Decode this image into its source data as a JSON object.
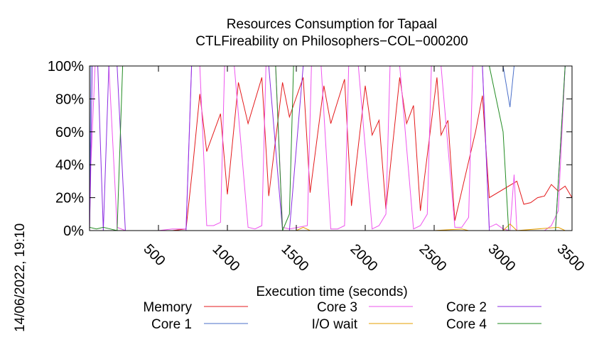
{
  "chart_data": {
    "type": "line",
    "title": "Resources Consumption for Tapaal",
    "subtitle": "CTLFireability on Philosophers−COL−000200",
    "xlabel": "Execution time (seconds)",
    "ylabel": "",
    "side_label": "14/06/2022, 19:10",
    "xlim": [
      0,
      3500
    ],
    "ylim": [
      0,
      100
    ],
    "x_ticks": [
      500,
      1000,
      1500,
      2000,
      2500,
      3000,
      3500
    ],
    "y_ticks": [
      {
        "value": 0,
        "label": "0%"
      },
      {
        "value": 20,
        "label": "20%"
      },
      {
        "value": 40,
        "label": "40%"
      },
      {
        "value": 60,
        "label": "60%"
      },
      {
        "value": 80,
        "label": "80%"
      },
      {
        "value": 100,
        "label": "100%"
      }
    ],
    "grid": false,
    "legend_position": "bottom",
    "series": [
      {
        "name": "Memory",
        "color": "#e41a1c",
        "points": [
          [
            0,
            0
          ],
          [
            50,
            0
          ],
          [
            100,
            0
          ],
          [
            200,
            0
          ],
          [
            300,
            0
          ],
          [
            400,
            0
          ],
          [
            500,
            0
          ],
          [
            600,
            0
          ],
          [
            700,
            1
          ],
          [
            750,
            40
          ],
          [
            800,
            83
          ],
          [
            850,
            48
          ],
          [
            950,
            71
          ],
          [
            1000,
            22
          ],
          [
            1080,
            90
          ],
          [
            1150,
            65
          ],
          [
            1250,
            93
          ],
          [
            1300,
            21
          ],
          [
            1400,
            90
          ],
          [
            1450,
            69
          ],
          [
            1550,
            93
          ],
          [
            1600,
            23
          ],
          [
            1700,
            88
          ],
          [
            1750,
            65
          ],
          [
            1850,
            92
          ],
          [
            1900,
            15
          ],
          [
            2000,
            88
          ],
          [
            2050,
            58
          ],
          [
            2100,
            67
          ],
          [
            2150,
            13
          ],
          [
            2250,
            93
          ],
          [
            2300,
            65
          ],
          [
            2350,
            76
          ],
          [
            2400,
            12
          ],
          [
            2520,
            93
          ],
          [
            2550,
            58
          ],
          [
            2600,
            67
          ],
          [
            2650,
            6
          ],
          [
            2800,
            60
          ],
          [
            2850,
            82
          ],
          [
            2900,
            20
          ],
          [
            3100,
            30
          ],
          [
            3150,
            16
          ],
          [
            3200,
            17
          ],
          [
            3250,
            20
          ],
          [
            3300,
            21
          ],
          [
            3350,
            28
          ],
          [
            3400,
            24
          ],
          [
            3450,
            27
          ],
          [
            3500,
            20
          ]
        ]
      },
      {
        "name": "Core 1",
        "color": "#4a6fc9",
        "points": [
          [
            0,
            0
          ],
          [
            10,
            100
          ],
          [
            1400,
            100
          ],
          [
            3000,
            100
          ],
          [
            3050,
            75
          ],
          [
            3080,
            100
          ],
          [
            3500,
            100
          ]
        ]
      },
      {
        "name": "Core 3",
        "color": "#ee55ee",
        "points": [
          [
            0,
            0
          ],
          [
            10,
            40
          ],
          [
            40,
            100
          ],
          [
            100,
            100
          ],
          [
            140,
            100
          ],
          [
            200,
            2
          ],
          [
            260,
            0
          ],
          [
            320,
            0
          ],
          [
            400,
            0
          ],
          [
            500,
            0
          ],
          [
            600,
            1
          ],
          [
            700,
            1
          ],
          [
            740,
            100
          ],
          [
            800,
            100
          ],
          [
            850,
            3
          ],
          [
            900,
            3
          ],
          [
            950,
            5
          ],
          [
            980,
            100
          ],
          [
            1050,
            100
          ],
          [
            1150,
            2
          ],
          [
            1200,
            1
          ],
          [
            1250,
            3
          ],
          [
            1280,
            100
          ],
          [
            1350,
            100
          ],
          [
            1400,
            2
          ],
          [
            1450,
            1
          ],
          [
            1580,
            3
          ],
          [
            1610,
            100
          ],
          [
            1680,
            100
          ],
          [
            1750,
            1
          ],
          [
            1800,
            1
          ],
          [
            1850,
            3
          ],
          [
            1880,
            100
          ],
          [
            1950,
            100
          ],
          [
            2050,
            1
          ],
          [
            2100,
            3
          ],
          [
            2150,
            10
          ],
          [
            2180,
            100
          ],
          [
            2250,
            100
          ],
          [
            2350,
            1
          ],
          [
            2400,
            3
          ],
          [
            2450,
            10
          ],
          [
            2480,
            100
          ],
          [
            2550,
            100
          ],
          [
            2650,
            2
          ],
          [
            2700,
            2
          ],
          [
            2750,
            8
          ],
          [
            2780,
            100
          ],
          [
            2850,
            100
          ],
          [
            2900,
            2
          ],
          [
            2950,
            4
          ],
          [
            3000,
            1
          ],
          [
            3050,
            0
          ],
          [
            3080,
            34
          ],
          [
            3100,
            0
          ],
          [
            3200,
            0
          ],
          [
            3300,
            0
          ],
          [
            3350,
            3
          ],
          [
            3400,
            12
          ],
          [
            3450,
            100
          ],
          [
            3500,
            100
          ]
        ]
      },
      {
        "name": "I/O wait",
        "color": "#e69f00",
        "points": [
          [
            0,
            0
          ],
          [
            500,
            0
          ],
          [
            1000,
            0
          ],
          [
            1500,
            0
          ],
          [
            1550,
            2
          ],
          [
            1600,
            0
          ],
          [
            2000,
            0
          ],
          [
            2500,
            0
          ],
          [
            2700,
            1
          ],
          [
            2750,
            0
          ],
          [
            3000,
            0
          ],
          [
            3050,
            4
          ],
          [
            3100,
            0
          ],
          [
            3400,
            2
          ],
          [
            3450,
            0
          ],
          [
            3500,
            0
          ]
        ]
      },
      {
        "name": "Core 2",
        "color": "#8a2be2",
        "points": [
          [
            0,
            0
          ],
          [
            20,
            100
          ],
          [
            60,
            100
          ],
          [
            100,
            0
          ],
          [
            140,
            100
          ],
          [
            200,
            100
          ],
          [
            260,
            0
          ],
          [
            320,
            0
          ],
          [
            500,
            0
          ],
          [
            700,
            0
          ],
          [
            740,
            100
          ],
          [
            1000,
            100
          ],
          [
            1300,
            100
          ],
          [
            1400,
            0
          ],
          [
            1450,
            0
          ],
          [
            1550,
            100
          ],
          [
            2500,
            100
          ],
          [
            2780,
            100
          ],
          [
            2850,
            100
          ],
          [
            2900,
            0
          ],
          [
            3050,
            0
          ],
          [
            3100,
            0
          ],
          [
            3300,
            0
          ],
          [
            3380,
            0
          ],
          [
            3450,
            100
          ],
          [
            3500,
            100
          ]
        ]
      },
      {
        "name": "Core 4",
        "color": "#228b22",
        "points": [
          [
            0,
            2
          ],
          [
            50,
            1
          ],
          [
            100,
            2
          ],
          [
            150,
            1
          ],
          [
            200,
            0
          ],
          [
            240,
            100
          ],
          [
            1350,
            100
          ],
          [
            1400,
            0
          ],
          [
            1450,
            10
          ],
          [
            1480,
            100
          ],
          [
            2900,
            100
          ],
          [
            3000,
            60
          ],
          [
            3040,
            0
          ],
          [
            3300,
            0
          ],
          [
            3380,
            0
          ],
          [
            3450,
            100
          ],
          [
            3500,
            100
          ]
        ]
      }
    ]
  }
}
